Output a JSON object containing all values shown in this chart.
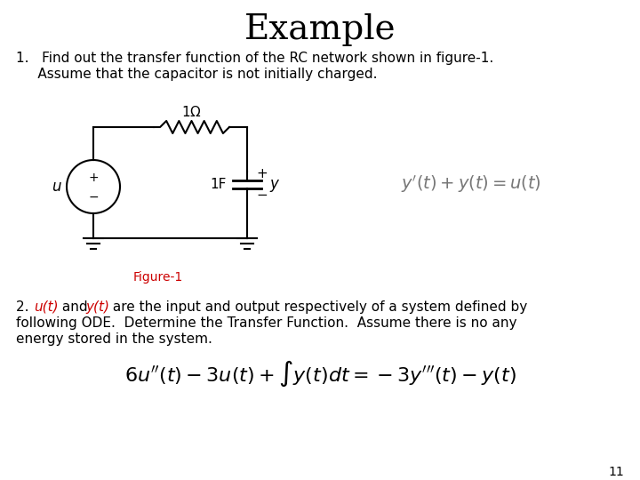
{
  "title": "Example",
  "title_fontsize": 28,
  "background_color": "#ffffff",
  "text_color": "#000000",
  "red_color": "#cc0000",
  "item1_line1": "1.   Find out the transfer function of the RC network shown in figure-1.",
  "item1_line2": "     Assume that the capacitor is not initially charged.",
  "figure_label": "Figure-1",
  "item2_line2": "following ODE.  Determine the Transfer Function.  Assume there is no any",
  "item2_line3": "energy stored in the system.",
  "page_number": "11"
}
